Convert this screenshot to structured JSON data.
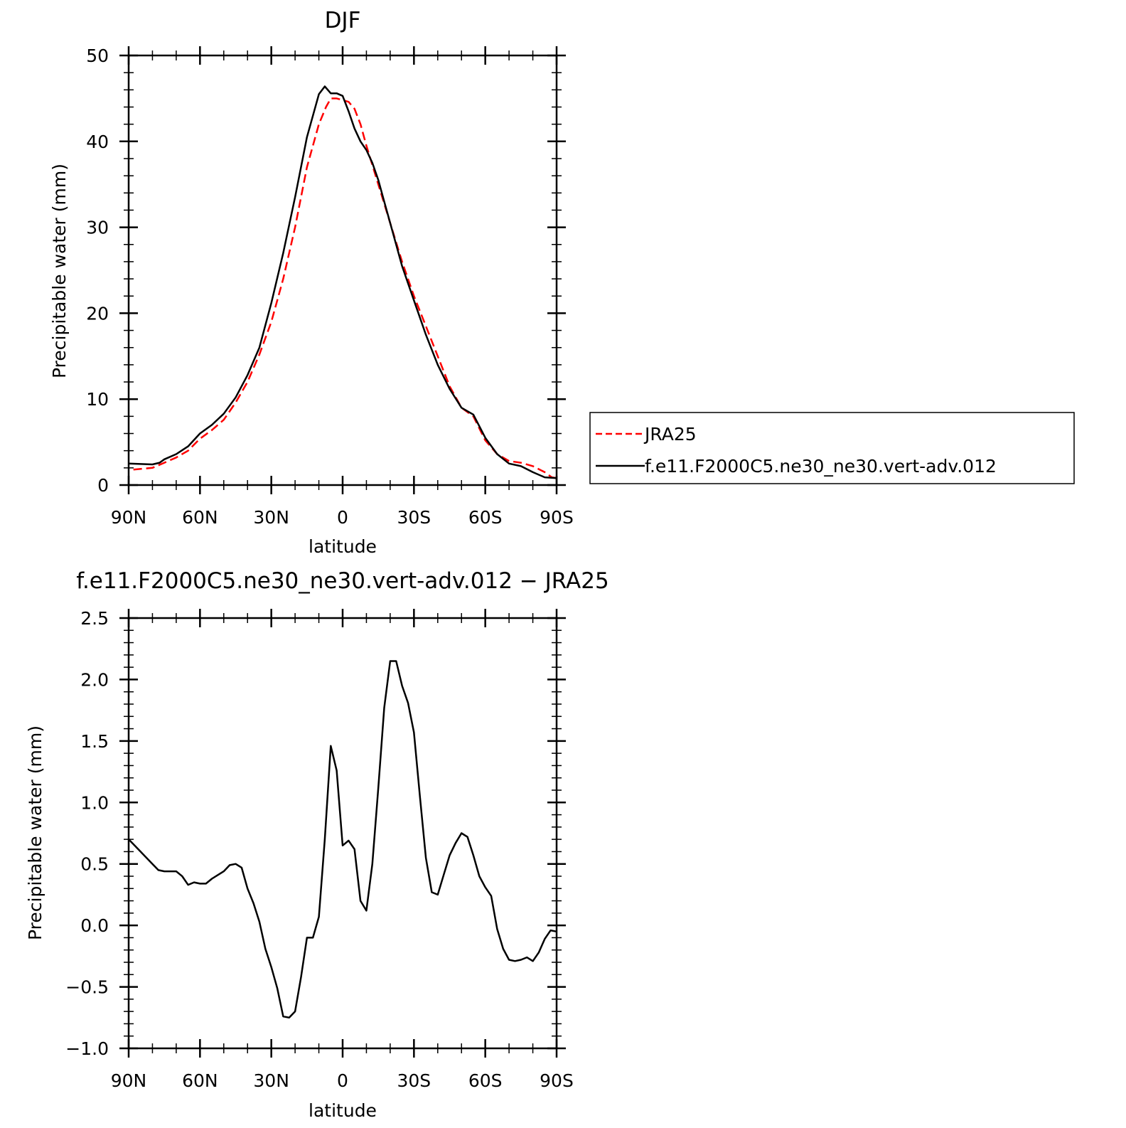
{
  "chart_data": [
    {
      "type": "line",
      "title": "DJF",
      "xlabel": "latitude",
      "ylabel": "Precipitable water (mm)",
      "xlim": [
        90,
        -90
      ],
      "ylim": [
        0,
        50
      ],
      "x_tick_values": [
        90,
        60,
        30,
        0,
        -30,
        -60,
        -90
      ],
      "x_tick_labels": [
        "90N",
        "60N",
        "30N",
        "0",
        "30S",
        "60S",
        "90S"
      ],
      "y_ticks": [
        0,
        10,
        20,
        30,
        40,
        50
      ],
      "y_tick_labels": [
        "0",
        "10",
        "20",
        "30",
        "40",
        "50"
      ],
      "legend_position": "right",
      "series": [
        {
          "name": "JRA25",
          "color": "#ff0000",
          "style": "dashed",
          "x": [
            88,
            80,
            75,
            70,
            65,
            60,
            55,
            50,
            45,
            40,
            35,
            30,
            25,
            20,
            15,
            10,
            7,
            5,
            2.5,
            0,
            -2.5,
            -5,
            -7.5,
            -10,
            -15,
            -20,
            -25,
            -30,
            -35,
            -40,
            -45,
            -50,
            -55,
            -60,
            -65,
            -70,
            -75,
            -80,
            -85,
            -88,
            -90
          ],
          "y": [
            1.8,
            2.0,
            2.6,
            3.2,
            4.0,
            5.4,
            6.4,
            7.6,
            9.6,
            12.0,
            15.2,
            19.0,
            24.0,
            30.0,
            37.0,
            42.0,
            44.0,
            45.0,
            45.0,
            44.8,
            44.6,
            43.8,
            42.0,
            39.5,
            35.0,
            30.5,
            26.0,
            22.0,
            18.5,
            15.0,
            11.5,
            9.0,
            8.0,
            5.2,
            3.6,
            2.8,
            2.6,
            2.2,
            1.5,
            0.9,
            0.8
          ]
        },
        {
          "name": "f.e11.F2000C5.ne30_ne30.vert-adv.012",
          "color": "#000000",
          "style": "solid",
          "x": [
            90,
            85,
            80,
            77,
            75,
            70,
            65,
            60,
            55,
            50,
            45,
            40,
            35,
            30,
            25,
            20,
            15,
            10,
            7.5,
            5,
            2.5,
            0,
            -2.5,
            -5,
            -7.5,
            -10,
            -12.5,
            -15,
            -17.5,
            -20,
            -25,
            -30,
            -35,
            -40,
            -45,
            -50,
            -55,
            -60,
            -65,
            -70,
            -75,
            -80,
            -85,
            -90
          ],
          "y": [
            2.5,
            2.45,
            2.4,
            2.6,
            3.0,
            3.6,
            4.5,
            6.0,
            7.0,
            8.3,
            10.2,
            12.8,
            16.0,
            21.2,
            27.0,
            33.5,
            40.5,
            45.5,
            46.4,
            45.6,
            45.6,
            45.3,
            43.5,
            41.5,
            40.0,
            39.0,
            37.5,
            35.5,
            33.0,
            30.5,
            25.5,
            21.5,
            17.5,
            14.0,
            11.2,
            9.0,
            8.2,
            5.5,
            3.6,
            2.5,
            2.2,
            1.5,
            0.9,
            0.8
          ]
        }
      ]
    },
    {
      "type": "line",
      "title": "f.e11.F2000C5.ne30_ne30.vert-adv.012 - JRA25",
      "xlabel": "latitude",
      "ylabel": "Precipitable water (mm)",
      "xlim": [
        90,
        -90
      ],
      "ylim": [
        -1.0,
        2.5
      ],
      "x_tick_values": [
        90,
        60,
        30,
        0,
        -30,
        -60,
        -90
      ],
      "x_tick_labels": [
        "90N",
        "60N",
        "30N",
        "0",
        "30S",
        "60S",
        "90S"
      ],
      "y_ticks": [
        -1.0,
        -0.5,
        0.0,
        0.5,
        1.0,
        1.5,
        2.0,
        2.5
      ],
      "y_tick_labels": [
        "-1.0",
        "-0.5",
        "0.0",
        "0.5",
        "1.0",
        "1.5",
        "2.0",
        "2.5"
      ],
      "series": [
        {
          "color": "#000000",
          "style": "solid",
          "x": [
            90,
            87.5,
            85,
            82.5,
            80,
            77.5,
            75,
            72.5,
            70,
            67.5,
            65,
            62.5,
            60,
            57.5,
            55,
            52.5,
            50,
            47.5,
            45,
            42.5,
            40,
            37.5,
            35,
            32.5,
            30,
            27.5,
            25,
            22.5,
            20,
            17.5,
            15,
            12.5,
            10,
            7.5,
            5,
            2.5,
            0,
            -2.5,
            -5,
            -7.5,
            -10,
            -12.5,
            -15,
            -17.5,
            -20,
            -22.5,
            -25,
            -27.5,
            -30,
            -32.5,
            -35,
            -37.5,
            -40,
            -42.5,
            -45,
            -47.5,
            -50,
            -52.5,
            -55,
            -57.5,
            -60,
            -62.5,
            -65,
            -67.5,
            -70,
            -72.5,
            -75,
            -77.5,
            -80,
            -82.5,
            -85,
            -87.5,
            -90
          ],
          "y": [
            0.7,
            0.65,
            0.6,
            0.55,
            0.5,
            0.45,
            0.44,
            0.44,
            0.44,
            0.4,
            0.33,
            0.35,
            0.34,
            0.34,
            0.38,
            0.41,
            0.44,
            0.49,
            0.5,
            0.47,
            0.3,
            0.18,
            0.03,
            -0.19,
            -0.34,
            -0.51,
            -0.74,
            -0.75,
            -0.7,
            -0.42,
            -0.1,
            -0.1,
            0.07,
            0.7,
            1.46,
            1.26,
            0.65,
            0.69,
            0.62,
            0.2,
            0.12,
            0.5,
            1.12,
            1.77,
            2.15,
            2.15,
            1.95,
            1.81,
            1.57,
            1.05,
            0.55,
            0.27,
            0.25,
            0.41,
            0.57,
            0.67,
            0.75,
            0.72,
            0.57,
            0.4,
            0.31,
            0.24,
            -0.03,
            -0.19,
            -0.28,
            -0.29,
            -0.28,
            -0.26,
            -0.29,
            -0.22,
            -0.11,
            -0.04,
            -0.05
          ]
        }
      ]
    }
  ]
}
